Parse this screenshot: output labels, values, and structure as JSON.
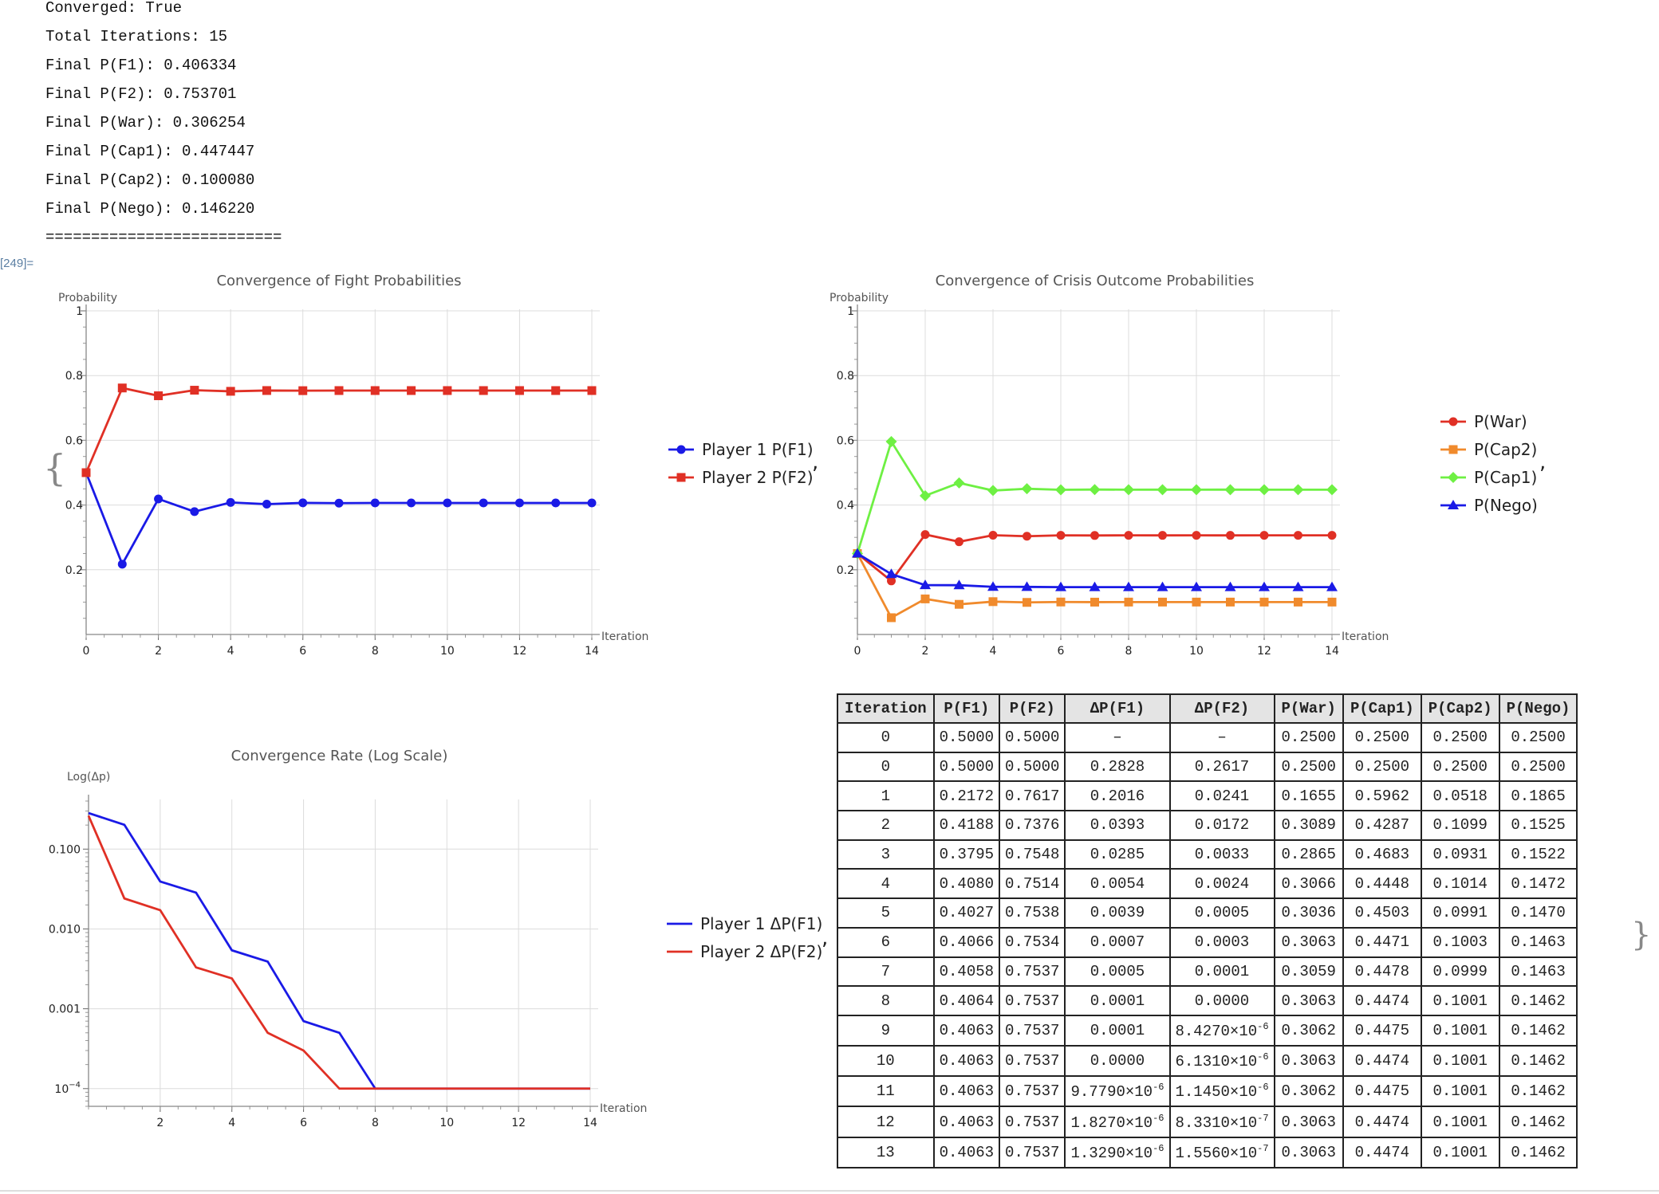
{
  "log": {
    "lines": [
      "Converged: True",
      "Total Iterations: 15",
      "Final P(F1): 0.406334",
      "Final P(F2): 0.753701",
      "Final P(War): 0.306254",
      "Final P(Cap1): 0.447447",
      "Final P(Cap2): 0.100080",
      "Final P(Nego): 0.146220",
      "=========================="
    ],
    "cell_label": "[249]="
  },
  "chart_data": [
    {
      "type": "line",
      "title": "Convergence of Fight Probabilities",
      "xlabel": "Iteration",
      "ylabel": "Probability",
      "xlim": [
        0,
        14
      ],
      "ylim": [
        0,
        1.0
      ],
      "x_ticks": [
        0,
        2,
        4,
        6,
        8,
        10,
        12,
        14
      ],
      "y_ticks": [
        0.2,
        0.4,
        0.6,
        0.8,
        1.0
      ],
      "x": [
        0,
        1,
        2,
        3,
        4,
        5,
        6,
        7,
        8,
        9,
        10,
        11,
        12,
        13,
        14
      ],
      "grid": true,
      "legend_position": "right",
      "series": [
        {
          "name": "Player 1 P(F1)",
          "color": "#1a1ae6",
          "marker": "circle",
          "values": [
            0.5,
            0.2172,
            0.4188,
            0.3795,
            0.408,
            0.4027,
            0.4066,
            0.4058,
            0.4064,
            0.4063,
            0.4063,
            0.4063,
            0.4063,
            0.4063,
            0.4063
          ]
        },
        {
          "name": "Player 2 P(F2)",
          "color": "#e03025",
          "marker": "square",
          "values": [
            0.5,
            0.7617,
            0.7376,
            0.7548,
            0.7514,
            0.7538,
            0.7534,
            0.7537,
            0.7537,
            0.7537,
            0.7537,
            0.7537,
            0.7537,
            0.7537,
            0.7537
          ]
        }
      ]
    },
    {
      "type": "line",
      "title": "Convergence of Crisis Outcome Probabilities",
      "xlabel": "Iteration",
      "ylabel": "Probability",
      "xlim": [
        0,
        14
      ],
      "ylim": [
        0,
        1.0
      ],
      "x_ticks": [
        0,
        2,
        4,
        6,
        8,
        10,
        12,
        14
      ],
      "y_ticks": [
        0.2,
        0.4,
        0.6,
        0.8,
        1.0
      ],
      "x": [
        0,
        1,
        2,
        3,
        4,
        5,
        6,
        7,
        8,
        9,
        10,
        11,
        12,
        13,
        14
      ],
      "grid": true,
      "legend_position": "right",
      "series": [
        {
          "name": "P(War)",
          "color": "#e03025",
          "marker": "circle",
          "values": [
            0.25,
            0.1655,
            0.3089,
            0.2865,
            0.3066,
            0.3036,
            0.3063,
            0.3059,
            0.3063,
            0.3062,
            0.3063,
            0.3062,
            0.3063,
            0.3063,
            0.3063
          ]
        },
        {
          "name": "P(Cap2)",
          "color": "#f08a2c",
          "marker": "square",
          "values": [
            0.25,
            0.0518,
            0.1099,
            0.0931,
            0.1014,
            0.0991,
            0.1003,
            0.0999,
            0.1001,
            0.1001,
            0.1001,
            0.1001,
            0.1001,
            0.1001,
            0.1001
          ]
        },
        {
          "name": "P(Cap1)",
          "color": "#6ef043",
          "marker": "diamond",
          "values": [
            0.25,
            0.5962,
            0.4287,
            0.4683,
            0.4448,
            0.4503,
            0.4471,
            0.4478,
            0.4474,
            0.4475,
            0.4474,
            0.4475,
            0.4474,
            0.4474,
            0.4474
          ]
        },
        {
          "name": "P(Nego)",
          "color": "#1a1ae6",
          "marker": "triangle",
          "values": [
            0.25,
            0.1865,
            0.1525,
            0.1522,
            0.1472,
            0.147,
            0.1463,
            0.1463,
            0.1462,
            0.1462,
            0.1462,
            0.1462,
            0.1462,
            0.1462,
            0.1462
          ]
        }
      ]
    },
    {
      "type": "line",
      "title": "Convergence Rate (Log Scale)",
      "xlabel": "Iteration",
      "ylabel": "Log(Δp)",
      "log_y": true,
      "xlim": [
        0,
        14
      ],
      "ylim": [
        6e-05,
        0.4
      ],
      "x_ticks": [
        2,
        4,
        6,
        8,
        10,
        12,
        14
      ],
      "y_ticks": [
        {
          "value": 0.1,
          "label": "0.100"
        },
        {
          "value": 0.01,
          "label": "0.010"
        },
        {
          "value": 0.001,
          "label": "0.001"
        },
        {
          "value": 0.0001,
          "label": "10",
          "sup": "−4"
        }
      ],
      "x": [
        0,
        1,
        2,
        3,
        4,
        5,
        6,
        7,
        8,
        9,
        10,
        11,
        12,
        13,
        14
      ],
      "grid": true,
      "legend_position": "right",
      "series": [
        {
          "name": "Player 1 ΔP(F1)",
          "color": "#1a1ae6",
          "values": [
            0.2828,
            0.2016,
            0.0393,
            0.0285,
            0.0054,
            0.0039,
            0.0007,
            0.0005,
            0.0001,
            0.0001,
            0.0001,
            0.0001,
            0.0001,
            0.0001,
            0.0001
          ]
        },
        {
          "name": "Player 2 ΔP(F2)",
          "color": "#e03025",
          "values": [
            0.2617,
            0.0241,
            0.0172,
            0.0033,
            0.0024,
            0.0005,
            0.0003,
            0.0001,
            0.0001,
            0.0001,
            0.0001,
            0.0001,
            0.0001,
            0.0001,
            0.0001
          ]
        }
      ]
    }
  ],
  "table": {
    "headers": [
      "Iteration",
      "P(F1)",
      "P(F2)",
      "ΔP(F1)",
      "ΔP(F2)",
      "P(War)",
      "P(Cap1)",
      "P(Cap2)",
      "P(Nego)"
    ],
    "rows": [
      [
        "0",
        "0.5000",
        "0.5000",
        "–",
        "–",
        "0.2500",
        "0.2500",
        "0.2500",
        "0.2500"
      ],
      [
        "0",
        "0.5000",
        "0.5000",
        "0.2828",
        "0.2617",
        "0.2500",
        "0.2500",
        "0.2500",
        "0.2500"
      ],
      [
        "1",
        "0.2172",
        "0.7617",
        "0.2016",
        "0.0241",
        "0.1655",
        "0.5962",
        "0.0518",
        "0.1865"
      ],
      [
        "2",
        "0.4188",
        "0.7376",
        "0.0393",
        "0.0172",
        "0.3089",
        "0.4287",
        "0.1099",
        "0.1525"
      ],
      [
        "3",
        "0.3795",
        "0.7548",
        "0.0285",
        "0.0033",
        "0.2865",
        "0.4683",
        "0.0931",
        "0.1522"
      ],
      [
        "4",
        "0.4080",
        "0.7514",
        "0.0054",
        "0.0024",
        "0.3066",
        "0.4448",
        "0.1014",
        "0.1472"
      ],
      [
        "5",
        "0.4027",
        "0.7538",
        "0.0039",
        "0.0005",
        "0.3036",
        "0.4503",
        "0.0991",
        "0.1470"
      ],
      [
        "6",
        "0.4066",
        "0.7534",
        "0.0007",
        "0.0003",
        "0.3063",
        "0.4471",
        "0.1003",
        "0.1463"
      ],
      [
        "7",
        "0.4058",
        "0.7537",
        "0.0005",
        "0.0001",
        "0.3059",
        "0.4478",
        "0.0999",
        "0.1463"
      ],
      [
        "8",
        "0.4064",
        "0.7537",
        "0.0001",
        "0.0000",
        "0.3063",
        "0.4474",
        "0.1001",
        "0.1462"
      ],
      [
        "9",
        "0.4063",
        "0.7537",
        "0.0001",
        "8.4270×10^-6",
        "0.3062",
        "0.4475",
        "0.1001",
        "0.1462"
      ],
      [
        "10",
        "0.4063",
        "0.7537",
        "0.0000",
        "6.1310×10^-6",
        "0.3063",
        "0.4474",
        "0.1001",
        "0.1462"
      ],
      [
        "11",
        "0.4063",
        "0.7537",
        "9.7790×10^-6",
        "1.1450×10^-6",
        "0.3062",
        "0.4475",
        "0.1001",
        "0.1462"
      ],
      [
        "12",
        "0.4063",
        "0.7537",
        "1.8270×10^-6",
        "8.3310×10^-7",
        "0.3063",
        "0.4474",
        "0.1001",
        "0.1462"
      ],
      [
        "13",
        "0.4063",
        "0.7537",
        "1.3290×10^-6",
        "1.5560×10^-7",
        "0.3063",
        "0.4474",
        "0.1001",
        "0.1462"
      ]
    ]
  },
  "punct": {
    "comma": ",",
    "brace_open": "{",
    "brace_close": "}"
  }
}
